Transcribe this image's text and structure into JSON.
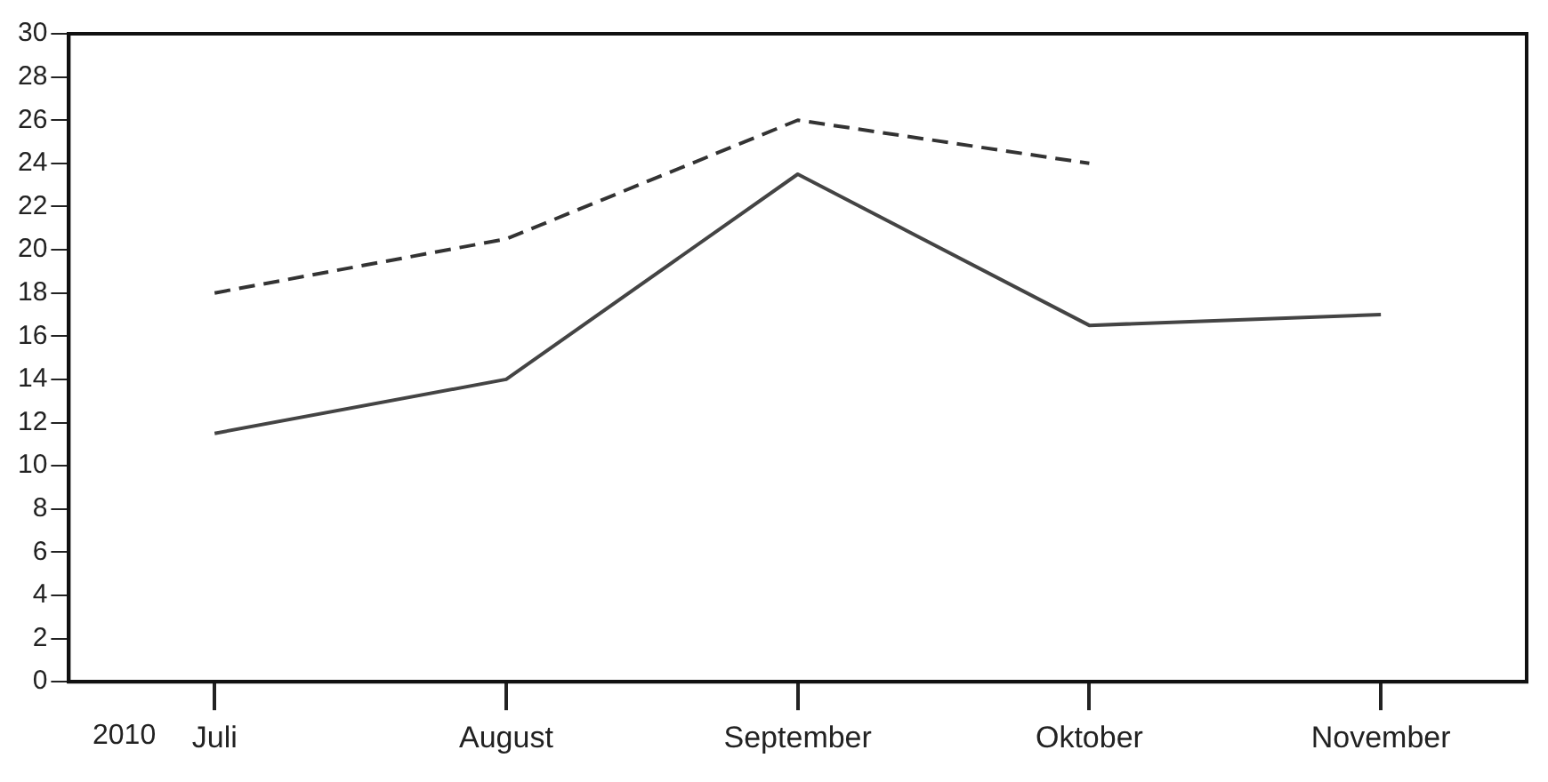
{
  "chart_data": {
    "type": "line",
    "categories": [
      "Juli",
      "August",
      "September",
      "Oktober",
      "November"
    ],
    "series": [
      {
        "color": "#333333",
        "line_style": "dashed",
        "values": [
          18,
          20.5,
          26,
          24,
          null
        ]
      },
      {
        "color": "#444444",
        "line_style": "solid",
        "values": [
          11.5,
          14,
          23.5,
          16.5,
          17
        ]
      }
    ],
    "ylim": [
      0,
      30
    ],
    "yticks": [
      0,
      2,
      4,
      6,
      8,
      10,
      12,
      14,
      16,
      18,
      20,
      22,
      24,
      26,
      28,
      30
    ],
    "grid": false,
    "legend": false,
    "marker": "none",
    "annotations": [
      "2010"
    ]
  }
}
